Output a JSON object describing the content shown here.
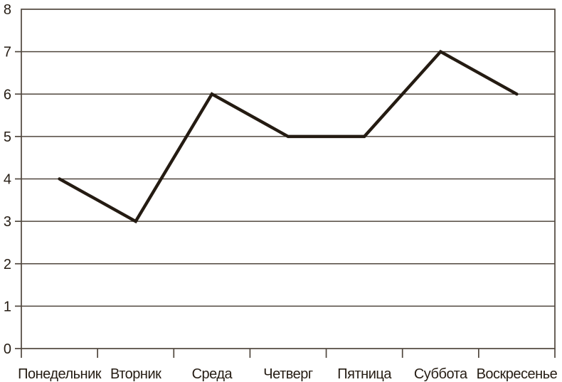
{
  "chart_data": {
    "type": "line",
    "categories": [
      "Понедельник",
      "Вторник",
      "Среда",
      "Четверг",
      "Пятница",
      "Суббота",
      "Воскресенье"
    ],
    "values": [
      4,
      3,
      6,
      5,
      5,
      7,
      6
    ],
    "title": "",
    "xlabel": "",
    "ylabel": "",
    "ylim": [
      0,
      8
    ],
    "yticks": [
      0,
      1,
      2,
      3,
      4,
      5,
      6,
      7,
      8
    ],
    "grid": true,
    "legend": false,
    "colors": {
      "line": "#241b12",
      "grid": "#50473e",
      "text": "#261d14",
      "background": "#ffffff"
    }
  }
}
